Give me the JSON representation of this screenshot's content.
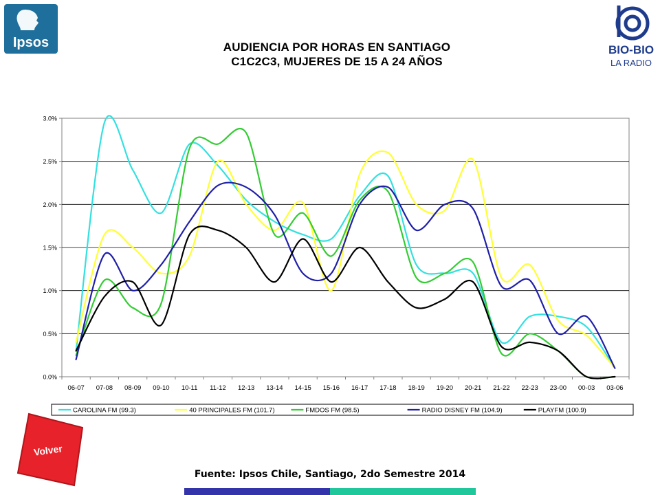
{
  "header": {
    "title_line1": "AUDIENCIA POR HORAS EN SANTIAGO",
    "title_line2": "C1C2C3, MUJERES DE 15 A 24 AÑOS"
  },
  "logos": {
    "ipsos_text": "Ipsos",
    "ipsos_color": "#1e6f9b",
    "biobio_text": "BIO-BIO",
    "biobio_sub": "LA RADIO",
    "biobio_color": "#1f3c8c"
  },
  "volver": {
    "label": "Volver",
    "color": "#e8222a"
  },
  "footer": {
    "source": "Fuente: Ipsos Chile, Santiago, 2do Semestre 2014",
    "bar_colors": [
      "#3333aa",
      "#1fc79a"
    ]
  },
  "chart_data": {
    "type": "line",
    "categories": [
      "06-07",
      "07-08",
      "08-09",
      "09-10",
      "10-11",
      "11-12",
      "12-13",
      "13-14",
      "14-15",
      "15-16",
      "16-17",
      "17-18",
      "18-19",
      "19-20",
      "20-21",
      "21-22",
      "22-23",
      "23-00",
      "00-03",
      "03-06"
    ],
    "y_ticks": [
      "0.0%",
      "0.5%",
      "1.0%",
      "1.5%",
      "2.0%",
      "2.5%",
      "3.0%"
    ],
    "ylim": [
      0,
      3.0
    ],
    "y_unit": "%",
    "grid": true,
    "legend_position": "bottom",
    "series": [
      {
        "name": "CAROLINA FM (99.3)",
        "color": "#33e0e0",
        "values": [
          0.3,
          2.95,
          2.4,
          1.9,
          2.7,
          2.45,
          2.05,
          1.8,
          1.65,
          1.6,
          2.1,
          2.33,
          1.3,
          1.2,
          1.2,
          0.4,
          0.7,
          0.7,
          0.58,
          0.1
        ]
      },
      {
        "name": "40 PRINCIPALES FM (101.7)",
        "color": "#ffff33",
        "values": [
          0.4,
          1.65,
          1.5,
          1.2,
          1.4,
          2.5,
          2.0,
          1.7,
          2.02,
          1.0,
          2.35,
          2.6,
          2.0,
          1.93,
          2.52,
          1.15,
          1.3,
          0.65,
          0.48,
          0.1
        ]
      },
      {
        "name": "FMDOS FM (98.5)",
        "color": "#33cc33",
        "values": [
          0.25,
          1.12,
          0.8,
          0.85,
          2.65,
          2.7,
          2.83,
          1.65,
          1.9,
          1.4,
          2.05,
          2.15,
          1.15,
          1.2,
          1.33,
          0.27,
          0.5,
          0.3,
          0.0,
          0.0
        ]
      },
      {
        "name": "RADIO DISNEY FM (104.9)",
        "color": "#1f1fa8",
        "values": [
          0.2,
          1.42,
          1.0,
          1.3,
          1.8,
          2.22,
          2.2,
          1.88,
          1.2,
          1.2,
          2.0,
          2.2,
          1.7,
          2.0,
          1.95,
          1.05,
          1.12,
          0.5,
          0.7,
          0.1
        ]
      },
      {
        "name": "PLAYFM (100.9)",
        "color": "#000000",
        "values": [
          0.3,
          0.93,
          1.1,
          0.6,
          1.65,
          1.7,
          1.5,
          1.1,
          1.6,
          1.1,
          1.5,
          1.1,
          0.8,
          0.9,
          1.1,
          0.35,
          0.4,
          0.3,
          0.0,
          0.0
        ]
      }
    ]
  }
}
